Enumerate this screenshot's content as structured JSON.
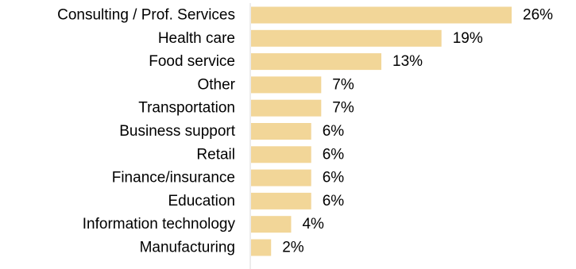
{
  "chart_data": {
    "type": "bar",
    "orientation": "horizontal",
    "title": "",
    "xlabel": "",
    "ylabel": "",
    "categories": [
      "Consulting / Prof. Services",
      "Health care",
      "Food service",
      "Other",
      "Transportation",
      "Business support",
      "Retail",
      "Finance/insurance",
      "Education",
      "Information technology",
      "Manufacturing"
    ],
    "values": [
      26,
      19,
      13,
      7,
      7,
      6,
      6,
      6,
      6,
      4,
      2
    ],
    "value_labels": [
      "26%",
      "19%",
      "13%",
      "7%",
      "7%",
      "6%",
      "6%",
      "6%",
      "6%",
      "4%",
      "2%"
    ],
    "xlim": [
      0,
      26
    ],
    "grid": false,
    "legend": "none",
    "bar_color": "#F2D698",
    "axis_color": "#D9D9D9"
  }
}
